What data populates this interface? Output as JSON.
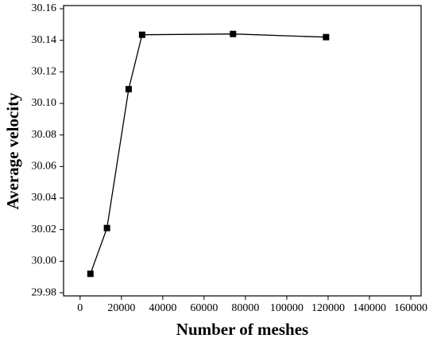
{
  "chart_data": {
    "type": "line",
    "xlabel": "Number of meshes",
    "ylabel": "Average velocity",
    "series": [
      {
        "color": "#000000",
        "x": [
          5000,
          13000,
          23500,
          30000,
          74000,
          119000
        ],
        "values": [
          29.992,
          30.021,
          30.109,
          30.1435,
          30.144,
          30.142
        ]
      }
    ],
    "xlim": [
      -8000,
      165000
    ],
    "xticks": [
      0,
      20000,
      40000,
      60000,
      80000,
      100000,
      120000,
      140000,
      160000
    ],
    "ylim": [
      29.978,
      30.162
    ],
    "yticks": [
      29.98,
      {
        "value": 30.0,
        "label": "30.00"
      },
      30.02,
      30.04,
      30.06,
      30.08,
      {
        "value": 30.1,
        "label": "30.10"
      },
      30.12,
      30.14,
      30.16
    ]
  }
}
